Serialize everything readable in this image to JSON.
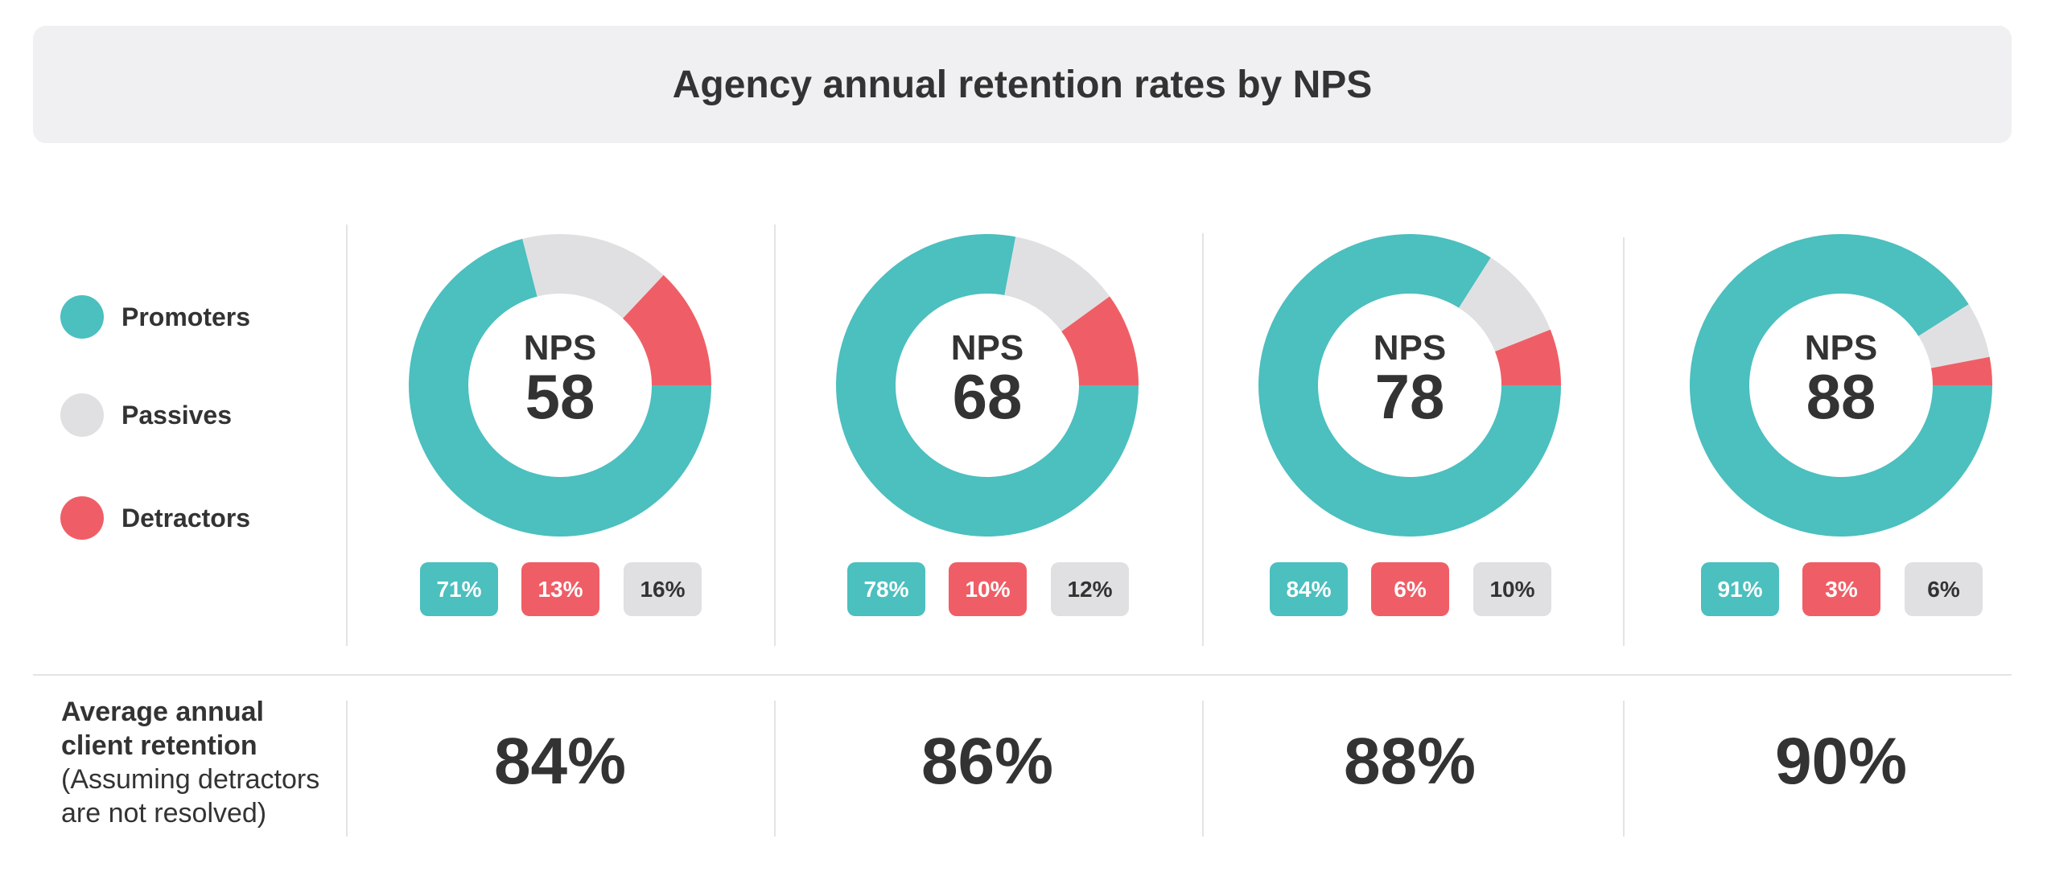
{
  "title": "Agency annual retention rates by NPS",
  "colors": {
    "promoters": "#4cbfbf",
    "passives": "#e0e0e2",
    "detractors": "#ef5e66",
    "text": "#333333"
  },
  "legend": [
    {
      "key": "promoters",
      "label": "Promoters"
    },
    {
      "key": "passives",
      "label": "Passives"
    },
    {
      "key": "detractors",
      "label": "Detractors"
    }
  ],
  "retention_label": {
    "line1": "Average annual",
    "line2": "client retention",
    "line3": "(Assuming detractors",
    "line4": "are not resolved)"
  },
  "chart_data": {
    "type": "pie",
    "variant": "donut",
    "title": "Agency annual retention rates by NPS",
    "series_order": [
      "Promoters",
      "Passives",
      "Detractors"
    ],
    "charts": [
      {
        "nps_label": "NPS",
        "nps": "58",
        "promoters": 71,
        "passives": 16,
        "detractors": 13,
        "promoters_label": "71%",
        "detractors_label": "13%",
        "passives_label": "16%",
        "retention": "84%"
      },
      {
        "nps_label": "NPS",
        "nps": "68",
        "promoters": 78,
        "passives": 12,
        "detractors": 10,
        "promoters_label": "78%",
        "detractors_label": "10%",
        "passives_label": "12%",
        "retention": "86%"
      },
      {
        "nps_label": "NPS",
        "nps": "78",
        "promoters": 84,
        "passives": 10,
        "detractors": 6,
        "promoters_label": "84%",
        "detractors_label": "6%",
        "passives_label": "10%",
        "retention": "88%"
      },
      {
        "nps_label": "NPS",
        "nps": "88",
        "promoters": 91,
        "passives": 6,
        "detractors": 3,
        "promoters_label": "91%",
        "detractors_label": "3%",
        "passives_label": "6%",
        "retention": "90%"
      }
    ]
  }
}
